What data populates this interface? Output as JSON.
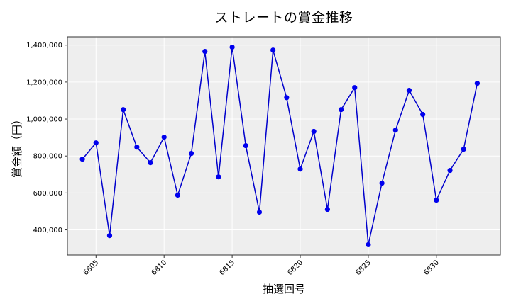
{
  "chart_data": {
    "type": "line",
    "title": "ストレートの賞金推移",
    "xlabel": "抽選回号",
    "ylabel": "賞金額（円）",
    "x": [
      6804,
      6805,
      6806,
      6807,
      6808,
      6809,
      6810,
      6811,
      6812,
      6813,
      6814,
      6815,
      6816,
      6817,
      6818,
      6819,
      6820,
      6821,
      6822,
      6823,
      6824,
      6825,
      6826,
      6827,
      6828,
      6829,
      6830,
      6831,
      6832,
      6833
    ],
    "series": [
      {
        "name": "ストレート",
        "color": "#0000cc",
        "marker_color": "#0000ee",
        "values": [
          783000,
          871000,
          369000,
          1051000,
          848000,
          764000,
          902000,
          588000,
          814000,
          1366000,
          687000,
          1389000,
          856000,
          496000,
          1373000,
          1116000,
          729000,
          933000,
          511000,
          1051000,
          1170000,
          320000,
          653000,
          940000,
          1155000,
          1025000,
          561000,
          722000,
          837000,
          1193000
        ]
      }
    ],
    "xticks": [
      6805,
      6810,
      6815,
      6820,
      6825,
      6830
    ],
    "xtick_labels": [
      "6805",
      "6810",
      "6815",
      "6820",
      "6825",
      "6830"
    ],
    "yticks": [
      400000,
      600000,
      800000,
      1000000,
      1200000,
      1400000
    ],
    "ytick_labels": [
      "400,000",
      "600,000",
      "800,000",
      "1,000,000",
      "1,200,000",
      "1,400,000"
    ],
    "xlim": [
      6802.9,
      6834.7
    ],
    "ylim": [
      264000,
      1445000
    ],
    "grid": true,
    "legend": null,
    "background": "#eeeeee",
    "grid_color": "#ffffff"
  }
}
